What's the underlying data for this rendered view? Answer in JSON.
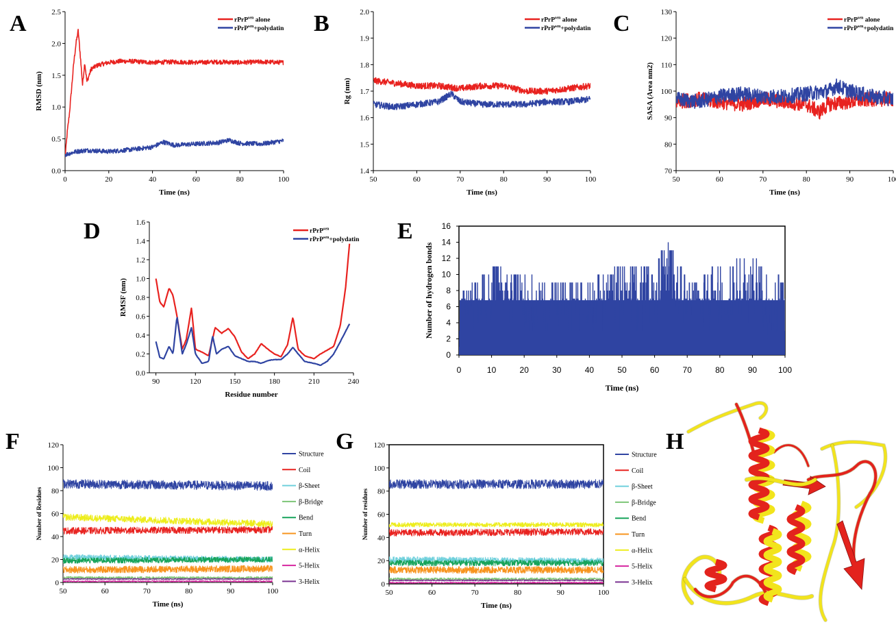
{
  "panel_labels": [
    "A",
    "B",
    "C",
    "D",
    "E",
    "F",
    "G",
    "H"
  ],
  "colors": {
    "red": "#e8221f",
    "blue": "#2f44a2",
    "ss_structure": "#2f44a2",
    "ss_coil": "#e8221f",
    "ss_sheet": "#6fd0dc",
    "ss_bridge": "#7cc576",
    "ss_bend": "#16a35a",
    "ss_turn": "#f7941d",
    "ss_alpha": "#eded1c",
    "ss_5helix": "#d6249f",
    "ss_3helix": "#7a3391",
    "ribbon_red": "#e3231d",
    "ribbon_yellow": "#f2e41c"
  },
  "chart_data": [
    {
      "id": "A",
      "type": "line",
      "xlabel": "Time (ns)",
      "ylabel": "RMSD (nm)",
      "xlim": [
        0,
        100
      ],
      "ylim": [
        0,
        2.5
      ],
      "xticks": [
        "0",
        "20",
        "40",
        "60",
        "80",
        "100"
      ],
      "yticks": [
        "0.0",
        "0.5",
        "1.0",
        "1.5",
        "2.0",
        "2.5"
      ],
      "legend_position": "top-right",
      "series": [
        {
          "name": "rPrPsen alone",
          "color": "#e8221f",
          "x": [
            0,
            1,
            2,
            3,
            4,
            5,
            6,
            7,
            8,
            9,
            10,
            12,
            15,
            20,
            25,
            30,
            40,
            50,
            60,
            70,
            80,
            90,
            100
          ],
          "y": [
            0.2,
            0.6,
            0.9,
            1.3,
            1.7,
            2.0,
            2.2,
            1.8,
            1.35,
            1.7,
            1.4,
            1.6,
            1.66,
            1.7,
            1.72,
            1.72,
            1.7,
            1.71,
            1.7,
            1.71,
            1.7,
            1.71,
            1.7
          ]
        },
        {
          "name": "rPrPsen+polydatin",
          "color": "#2f44a2",
          "x": [
            0,
            5,
            10,
            20,
            30,
            40,
            45,
            50,
            60,
            70,
            75,
            80,
            90,
            100
          ],
          "y": [
            0.25,
            0.3,
            0.32,
            0.3,
            0.33,
            0.37,
            0.45,
            0.4,
            0.42,
            0.44,
            0.48,
            0.43,
            0.42,
            0.47
          ]
        }
      ]
    },
    {
      "id": "B",
      "type": "line",
      "xlabel": "Time (ns)",
      "ylabel": "Rg (nm)",
      "xlim": [
        50,
        100
      ],
      "ylim": [
        1.4,
        2.0
      ],
      "xticks": [
        "50",
        "60",
        "70",
        "80",
        "90",
        "100"
      ],
      "yticks": [
        "1.4",
        "1.5",
        "1.6",
        "1.7",
        "1.8",
        "1.9",
        "2.0"
      ],
      "legend_position": "top-right",
      "series": [
        {
          "name": "rPrPsen alone",
          "color": "#e8221f",
          "x": [
            50,
            55,
            60,
            65,
            70,
            75,
            80,
            85,
            90,
            95,
            100
          ],
          "y": [
            1.74,
            1.73,
            1.72,
            1.72,
            1.71,
            1.72,
            1.72,
            1.7,
            1.7,
            1.71,
            1.72
          ]
        },
        {
          "name": "rPrPsen+polydatin",
          "color": "#2f44a2",
          "x": [
            50,
            55,
            60,
            65,
            68,
            70,
            75,
            80,
            85,
            90,
            95,
            100
          ],
          "y": [
            1.65,
            1.64,
            1.65,
            1.66,
            1.69,
            1.66,
            1.65,
            1.65,
            1.65,
            1.66,
            1.66,
            1.67
          ]
        }
      ]
    },
    {
      "id": "C",
      "type": "line",
      "xlabel": "Time (ns)",
      "ylabel": "SASA (Area nm2)",
      "xlim": [
        50,
        100
      ],
      "ylim": [
        70,
        130
      ],
      "xticks": [
        "50",
        "60",
        "70",
        "80",
        "90",
        "100"
      ],
      "yticks": [
        "70",
        "80",
        "90",
        "100",
        "110",
        "120",
        "130"
      ],
      "legend_position": "top-right",
      "series": [
        {
          "name": "rPrPsen alone",
          "color": "#e8221f",
          "x": [
            50,
            55,
            60,
            65,
            70,
            75,
            80,
            83,
            85,
            90,
            95,
            100
          ],
          "y": [
            96,
            97,
            96,
            95,
            97,
            96,
            95,
            92,
            95,
            96,
            97,
            97
          ]
        },
        {
          "name": "rPrPsen+polydatin",
          "color": "#2f44a2",
          "x": [
            50,
            55,
            60,
            65,
            70,
            75,
            80,
            85,
            87,
            90,
            95,
            100
          ],
          "y": [
            97,
            96,
            98,
            99,
            98,
            98,
            99,
            100,
            102,
            100,
            98,
            97
          ]
        }
      ]
    },
    {
      "id": "D",
      "type": "line",
      "xlabel": "Residue number",
      "ylabel": "RMSF (nm)",
      "xlim": [
        85,
        240
      ],
      "ylim": [
        0,
        1.6
      ],
      "xticks": [
        "90",
        "120",
        "150",
        "180",
        "210",
        "240"
      ],
      "yticks": [
        "0.0",
        "0.2",
        "0.4",
        "0.6",
        "0.8",
        "1.0",
        "1.2",
        "1.4",
        "1.6"
      ],
      "legend_position": "top-right",
      "series": [
        {
          "name": "rPrPsen",
          "color": "#e8221f",
          "x": [
            90,
            93,
            96,
            100,
            103,
            106,
            110,
            113,
            117,
            120,
            125,
            130,
            135,
            140,
            145,
            150,
            155,
            160,
            165,
            170,
            175,
            180,
            185,
            190,
            194,
            198,
            203,
            210,
            215,
            220,
            225,
            230,
            234,
            237
          ],
          "y": [
            1.0,
            0.75,
            0.7,
            0.9,
            0.82,
            0.6,
            0.25,
            0.35,
            0.69,
            0.25,
            0.22,
            0.18,
            0.48,
            0.42,
            0.47,
            0.38,
            0.22,
            0.15,
            0.2,
            0.31,
            0.25,
            0.2,
            0.17,
            0.3,
            0.59,
            0.25,
            0.18,
            0.15,
            0.2,
            0.24,
            0.28,
            0.5,
            0.9,
            1.37
          ]
        },
        {
          "name": "rPrPsen+polydatin",
          "color": "#2f44a2",
          "x": [
            90,
            93,
            96,
            100,
            103,
            106,
            110,
            113,
            117,
            120,
            125,
            130,
            133,
            136,
            140,
            145,
            150,
            155,
            160,
            165,
            170,
            175,
            180,
            185,
            190,
            194,
            198,
            203,
            210,
            215,
            220,
            225,
            230,
            237
          ],
          "y": [
            0.33,
            0.16,
            0.15,
            0.28,
            0.2,
            0.6,
            0.2,
            0.3,
            0.48,
            0.2,
            0.1,
            0.12,
            0.39,
            0.2,
            0.25,
            0.28,
            0.18,
            0.15,
            0.12,
            0.12,
            0.1,
            0.13,
            0.14,
            0.14,
            0.2,
            0.27,
            0.2,
            0.12,
            0.1,
            0.08,
            0.12,
            0.2,
            0.33,
            0.52
          ]
        }
      ]
    },
    {
      "id": "E",
      "type": "line",
      "xlabel": "Time (ns)",
      "ylabel": "Number of hydrogen bonds",
      "xlim": [
        0,
        100
      ],
      "ylim": [
        0,
        16
      ],
      "xticks": [
        "0",
        "10",
        "20",
        "30",
        "40",
        "50",
        "60",
        "70",
        "80",
        "90",
        "100"
      ],
      "yticks": [
        "0",
        "2",
        "4",
        "6",
        "8",
        "10",
        "12",
        "14",
        "16"
      ],
      "series": [
        {
          "name": "",
          "color": "#2f44a2",
          "x": [
            0,
            10,
            20,
            30,
            40,
            50,
            60,
            64,
            70,
            80,
            90,
            100
          ],
          "y": [
            7,
            11,
            10,
            9,
            9,
            11,
            11,
            14,
            9,
            11,
            12,
            9
          ]
        }
      ]
    },
    {
      "id": "F",
      "type": "line",
      "xlabel": "Time (ns)",
      "ylabel": "Number of Residues",
      "xlim": [
        50,
        100
      ],
      "ylim": [
        0,
        120
      ],
      "xticks": [
        "50",
        "60",
        "70",
        "80",
        "90",
        "100"
      ],
      "yticks": [
        "0",
        "20",
        "40",
        "60",
        "80",
        "100",
        "120"
      ],
      "legend_position": "right",
      "series": [
        {
          "name": "Structure",
          "color": "#2f44a2",
          "x": [
            50,
            100
          ],
          "y": [
            86,
            84
          ]
        },
        {
          "name": "Coil",
          "color": "#e8221f",
          "x": [
            50,
            100
          ],
          "y": [
            45,
            46
          ]
        },
        {
          "name": "β-Sheet",
          "color": "#6fd0dc",
          "x": [
            50,
            100
          ],
          "y": [
            22,
            20
          ]
        },
        {
          "name": "β-Bridge",
          "color": "#7cc576",
          "x": [
            50,
            100
          ],
          "y": [
            4,
            4
          ]
        },
        {
          "name": "Bend",
          "color": "#16a35a",
          "x": [
            50,
            100
          ],
          "y": [
            19,
            20
          ]
        },
        {
          "name": "Turn",
          "color": "#f7941d",
          "x": [
            50,
            100
          ],
          "y": [
            11,
            12
          ]
        },
        {
          "name": "α-Helix",
          "color": "#eded1c",
          "x": [
            50,
            100
          ],
          "y": [
            57,
            51
          ]
        },
        {
          "name": "5-Helix",
          "color": "#d6249f",
          "x": [
            50,
            100
          ],
          "y": [
            1,
            1
          ]
        },
        {
          "name": "3-Helix",
          "color": "#7a3391",
          "x": [
            50,
            100
          ],
          "y": [
            3,
            3
          ]
        }
      ]
    },
    {
      "id": "G",
      "type": "line",
      "xlabel": "Time (ns)",
      "ylabel": "Number of residues",
      "xlim": [
        50,
        100
      ],
      "ylim": [
        0,
        120
      ],
      "xticks": [
        "50",
        "60",
        "70",
        "80",
        "90",
        "100"
      ],
      "yticks": [
        "0",
        "20",
        "40",
        "60",
        "80",
        "100",
        "120"
      ],
      "legend_position": "right",
      "series": [
        {
          "name": "Structure",
          "color": "#2f44a2",
          "x": [
            50,
            100
          ],
          "y": [
            86,
            86
          ]
        },
        {
          "name": "Coil",
          "color": "#e8221f",
          "x": [
            50,
            100
          ],
          "y": [
            44,
            45
          ]
        },
        {
          "name": "β-Sheet",
          "color": "#6fd0dc",
          "x": [
            50,
            100
          ],
          "y": [
            21,
            20
          ]
        },
        {
          "name": "β-Bridge",
          "color": "#7cc576",
          "x": [
            50,
            100
          ],
          "y": [
            4,
            4
          ]
        },
        {
          "name": "Bend",
          "color": "#16a35a",
          "x": [
            50,
            100
          ],
          "y": [
            18,
            18
          ]
        },
        {
          "name": "Turn",
          "color": "#f7941d",
          "x": [
            50,
            100
          ],
          "y": [
            12,
            12
          ]
        },
        {
          "name": "α-Helix",
          "color": "#eded1c",
          "x": [
            50,
            100
          ],
          "y": [
            51,
            51
          ]
        },
        {
          "name": "5-Helix",
          "color": "#d6249f",
          "x": [
            50,
            100
          ],
          "y": [
            1,
            1
          ]
        },
        {
          "name": "3-Helix",
          "color": "#7a3391",
          "x": [
            50,
            100
          ],
          "y": [
            3,
            3
          ]
        }
      ]
    }
  ]
}
